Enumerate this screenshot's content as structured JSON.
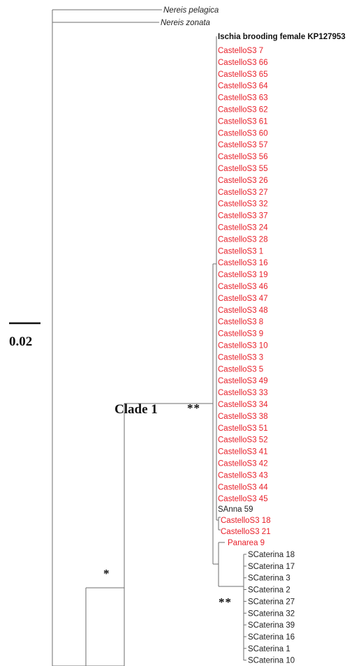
{
  "outgroup": [
    "Nereis pelagica",
    "Nereis zonata"
  ],
  "reference_taxon": "Ischia brooding female KP127953",
  "castello_group": [
    "CastelloS3 7",
    "CastelloS3 66",
    "CastelloS3 65",
    "CastelloS3 64",
    "CastelloS3 63",
    "CastelloS3 62",
    "CastelloS3 61",
    "CastelloS3 60",
    "CastelloS3 57",
    "CastelloS3 56",
    "CastelloS3 55",
    "CastelloS3 26",
    "CastelloS3 27",
    "CastelloS3 32",
    "CastelloS3 37",
    "CastelloS3 24",
    "CastelloS3 28",
    "CastelloS3 1",
    "CastelloS3 16",
    "CastelloS3 19",
    "CastelloS3 46",
    "CastelloS3 47",
    "CastelloS3 48",
    "CastelloS3 8",
    "CastelloS3 9",
    "CastelloS3 10",
    "CastelloS3 3",
    "CastelloS3 5",
    "CastelloS3 49",
    "CastelloS3 33",
    "CastelloS3 34",
    "CastelloS3 38",
    "CastelloS3 51",
    "CastelloS3 52",
    "CastelloS3 41",
    "CastelloS3 42",
    "CastelloS3 43",
    "CastelloS3 44",
    "CastelloS3 45"
  ],
  "sanna": "SAnna 59",
  "castello_pair": [
    "CastelloS3 18",
    "CastelloS3 21"
  ],
  "panarea": "Panarea 9",
  "scaterina_group": [
    "SCaterina 18",
    "SCaterina 17",
    "SCaterina 3",
    "SCaterina 2",
    "SCaterina 27",
    "SCaterina 32",
    "SCaterina 39",
    "SCaterina 16",
    "SCaterina 1",
    "SCaterina 10"
  ],
  "annotations": {
    "clade_label": "Clade 1",
    "clade_support": "**",
    "lower_support": "**",
    "basal_support": "*"
  },
  "scale_bar": {
    "value": "0.02"
  },
  "colors": {
    "red_taxa": "#e8202a",
    "black_taxa": "#222222",
    "branches": "#6e6e6e"
  }
}
